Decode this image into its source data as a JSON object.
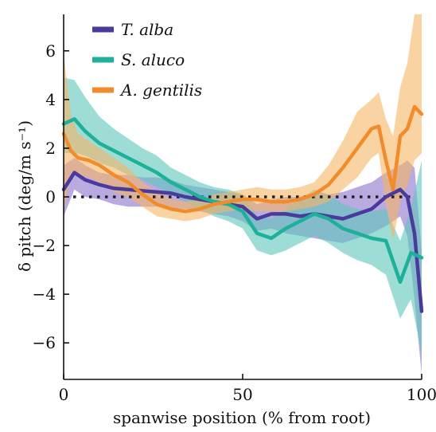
{
  "chart_data": {
    "type": "line",
    "xlabel": "spanwise position (% from root)",
    "ylabel": "δ pitch (deg/m s⁻¹)",
    "xlim": [
      0,
      100
    ],
    "ylim": [
      -7.5,
      7.5
    ],
    "xticks": [
      0,
      50,
      100
    ],
    "yticks": [
      6,
      4,
      2,
      0,
      -2,
      -4,
      -6
    ],
    "grid": false,
    "legend_position": "top-left",
    "zero_reference": {
      "y": 0,
      "style": "dotted",
      "color": "#222222"
    },
    "series": [
      {
        "name": "T. alba",
        "color": "#4a3a9c",
        "band_color": "#8b72cc",
        "x": [
          0,
          3,
          6,
          10,
          14,
          18,
          22,
          26,
          30,
          34,
          38,
          42,
          46,
          50,
          54,
          58,
          62,
          66,
          70,
          74,
          78,
          82,
          86,
          90,
          94,
          96,
          98,
          100
        ],
        "y": [
          0.3,
          1.0,
          0.7,
          0.5,
          0.35,
          0.3,
          0.25,
          0.2,
          0.15,
          0.0,
          -0.1,
          -0.2,
          -0.3,
          -0.4,
          -0.9,
          -0.7,
          -0.7,
          -0.8,
          -0.7,
          -0.8,
          -0.9,
          -0.7,
          -0.5,
          0.0,
          0.3,
          0.0,
          -1.5,
          -4.7
        ],
        "lower": [
          -0.8,
          0.3,
          0.0,
          -0.1,
          -0.3,
          -0.4,
          -0.4,
          -0.4,
          -0.5,
          -0.5,
          -0.6,
          -0.7,
          -0.8,
          -1.0,
          -1.4,
          -1.3,
          -1.5,
          -1.6,
          -1.7,
          -1.8,
          -1.9,
          -1.7,
          -1.5,
          -1.2,
          -0.8,
          -1.6,
          -4.2,
          -7.3
        ],
        "upper": [
          1.3,
          1.6,
          1.3,
          1.0,
          0.9,
          0.9,
          0.8,
          0.8,
          0.7,
          0.5,
          0.4,
          0.3,
          0.2,
          0.1,
          -0.3,
          -0.1,
          0.0,
          0.0,
          0.2,
          0.1,
          0.2,
          0.4,
          0.6,
          1.0,
          1.3,
          1.5,
          1.2,
          -2.2
        ]
      },
      {
        "name": "S. aluco",
        "color": "#1fb09a",
        "band_color": "#5ec7bb",
        "x": [
          0,
          3,
          6,
          10,
          14,
          18,
          22,
          26,
          30,
          34,
          38,
          42,
          46,
          50,
          54,
          58,
          62,
          66,
          70,
          74,
          78,
          82,
          86,
          90,
          94,
          97,
          100
        ],
        "y": [
          3.0,
          3.2,
          2.7,
          2.2,
          1.9,
          1.6,
          1.3,
          1.0,
          0.6,
          0.3,
          0.0,
          -0.2,
          -0.3,
          -0.6,
          -1.5,
          -1.7,
          -1.3,
          -1.0,
          -0.7,
          -0.9,
          -1.3,
          -1.5,
          -1.7,
          -1.8,
          -3.5,
          -2.3,
          -2.5
        ],
        "lower": [
          1.8,
          1.8,
          1.7,
          1.4,
          1.2,
          0.9,
          0.7,
          0.4,
          0.1,
          -0.2,
          -0.5,
          -0.8,
          -1.0,
          -1.3,
          -2.2,
          -2.4,
          -2.2,
          -1.9,
          -1.6,
          -1.9,
          -2.3,
          -2.6,
          -2.8,
          -3.2,
          -5.0,
          -4.2,
          -6.5
        ],
        "upper": [
          4.9,
          4.8,
          4.1,
          3.3,
          2.8,
          2.4,
          2.0,
          1.7,
          1.2,
          0.9,
          0.6,
          0.4,
          0.3,
          0.1,
          -0.8,
          -0.9,
          -0.5,
          -0.1,
          0.3,
          0.1,
          -0.3,
          -0.5,
          -0.6,
          -0.5,
          -1.8,
          -0.5,
          1.5
        ]
      },
      {
        "name": "A. gentilis",
        "color": "#f08c2c",
        "band_color": "#f7b566",
        "x": [
          0,
          2,
          4,
          7,
          10,
          14,
          18,
          22,
          26,
          30,
          34,
          38,
          42,
          46,
          50,
          54,
          58,
          62,
          66,
          70,
          74,
          78,
          82,
          86,
          88,
          90,
          92,
          94,
          96,
          98,
          100
        ],
        "y": [
          2.6,
          1.9,
          1.6,
          1.5,
          1.3,
          0.9,
          0.6,
          0.1,
          -0.3,
          -0.5,
          -0.6,
          -0.5,
          -0.3,
          -0.2,
          -0.1,
          -0.1,
          -0.2,
          -0.2,
          -0.1,
          0.1,
          0.5,
          1.2,
          2.0,
          2.8,
          2.9,
          1.5,
          0.3,
          2.5,
          2.8,
          3.7,
          3.4
        ],
        "lower": [
          -0.6,
          0.9,
          0.9,
          0.8,
          0.6,
          0.2,
          0.0,
          -0.4,
          -0.8,
          -0.9,
          -1.0,
          -0.9,
          -0.7,
          -0.6,
          -0.5,
          -0.6,
          -0.6,
          -0.6,
          -0.5,
          -0.4,
          -0.2,
          0.3,
          0.8,
          1.6,
          1.8,
          -0.3,
          -1.8,
          -0.2,
          0.5,
          1.5,
          1.8
        ],
        "upper": [
          5.9,
          3.4,
          2.6,
          2.3,
          2.0,
          1.6,
          1.2,
          0.6,
          0.2,
          -0.1,
          -0.2,
          -0.1,
          0.1,
          0.2,
          0.3,
          0.4,
          0.3,
          0.3,
          0.4,
          0.6,
          1.3,
          2.3,
          3.5,
          4.0,
          4.3,
          3.2,
          2.5,
          4.5,
          5.5,
          7.5,
          7.5
        ]
      }
    ]
  }
}
